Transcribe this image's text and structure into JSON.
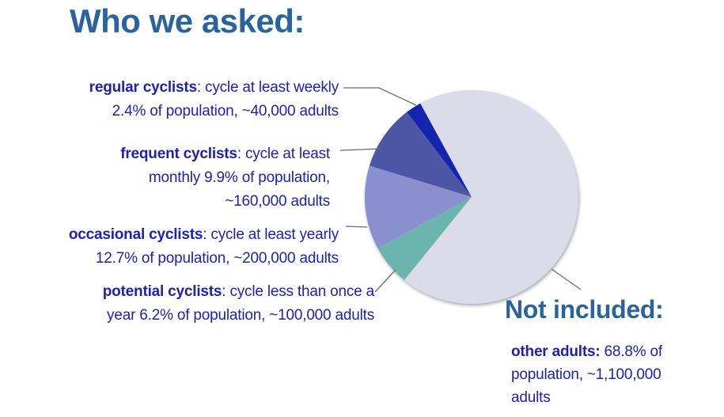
{
  "title": "Who we asked:",
  "colors": {
    "background": "#ffffff",
    "heading": "#29649e",
    "body_text": "#1d23b0",
    "leader_line": "#6b6b6b"
  },
  "chart_data": {
    "type": "pie",
    "title": "Who we asked:",
    "units": "% of population",
    "legend_position": "callout-labels",
    "layout": {
      "center": [
        596,
        249
      ],
      "radius": 135,
      "start_bearing_deg": 331.3,
      "direction": "counterclockwise"
    },
    "slices": [
      {
        "id": "regular",
        "label": "regular cyclists",
        "definition": "cycle at least weekly",
        "pct_of_population": 2.4,
        "adults": "~40,000",
        "color": "#1424ae"
      },
      {
        "id": "frequent",
        "label": "frequent cyclists",
        "definition": "cycle at least monthly",
        "pct_of_population": 9.9,
        "adults": "~160,000",
        "color": "#4d56a5"
      },
      {
        "id": "occasional",
        "label": "occasional cyclists",
        "definition": "cycle at least yearly",
        "pct_of_population": 12.7,
        "adults": "~200,000",
        "color": "#8a8fd0"
      },
      {
        "id": "potential",
        "label": "potential cyclists",
        "definition": "cycle less than once a year",
        "pct_of_population": 6.2,
        "adults": "~100,000",
        "color": "#6cb5ae"
      },
      {
        "id": "other",
        "label": "other adults",
        "definition": "not included",
        "pct_of_population": 68.8,
        "adults": "~1,100,000",
        "color": "#dcdbe8"
      }
    ]
  },
  "callouts": {
    "regular": {
      "bold": "regular cyclists",
      "rest": ": cycle at least weekly",
      "line2": "2.4% of population, ~40,000 adults"
    },
    "frequent": {
      "bold": "frequent cyclists",
      "rest": ": cycle at least",
      "line2": "monthly 9.9% of population,",
      "line3": "~160,000 adults"
    },
    "occasional": {
      "bold": "occasional cyclists",
      "rest": ": cycle at least yearly",
      "line2": "12.7% of population, ~200,000 adults"
    },
    "potential": {
      "bold": "potential cyclists",
      "rest": ": cycle less than once a",
      "line2": "year 6.2% of population, ~100,000 adults"
    },
    "not_included_heading": "Not included:",
    "other": {
      "bold": "other adults:",
      "rest": " 68.8% of",
      "line2": "population, ~1,100,000",
      "line3": "adults"
    }
  }
}
